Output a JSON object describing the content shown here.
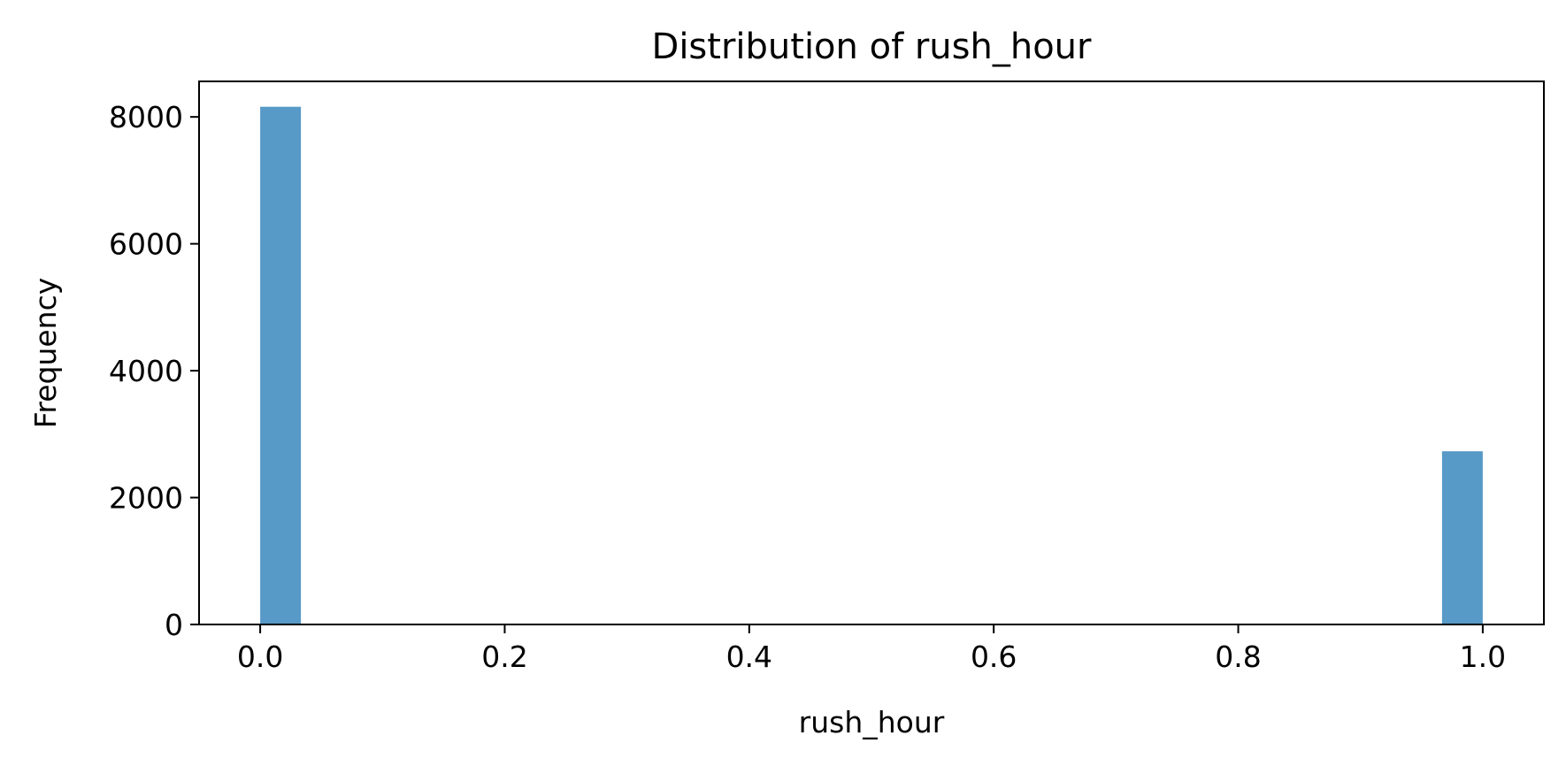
{
  "chart_data": {
    "type": "bar",
    "title": "Distribution of rush_hour",
    "xlabel": "rush_hour",
    "ylabel": "Frequency",
    "xlim": [
      -0.05,
      1.05
    ],
    "ylim": [
      0,
      8560
    ],
    "x_ticks": [
      "0.0",
      "0.2",
      "0.4",
      "0.6",
      "0.8",
      "1.0"
    ],
    "x_tick_values": [
      0.0,
      0.2,
      0.4,
      0.6,
      0.8,
      1.0
    ],
    "y_ticks": [
      "0",
      "2000",
      "4000",
      "6000",
      "8000"
    ],
    "y_tick_values": [
      0,
      2000,
      4000,
      6000,
      8000
    ],
    "bins": [
      {
        "x_start": 0.0,
        "x_end": 0.0333,
        "value": 8160
      },
      {
        "x_start": 0.9667,
        "x_end": 1.0,
        "value": 2730
      }
    ],
    "bar_color": "#5799c7",
    "grid": false,
    "legend": "none"
  }
}
